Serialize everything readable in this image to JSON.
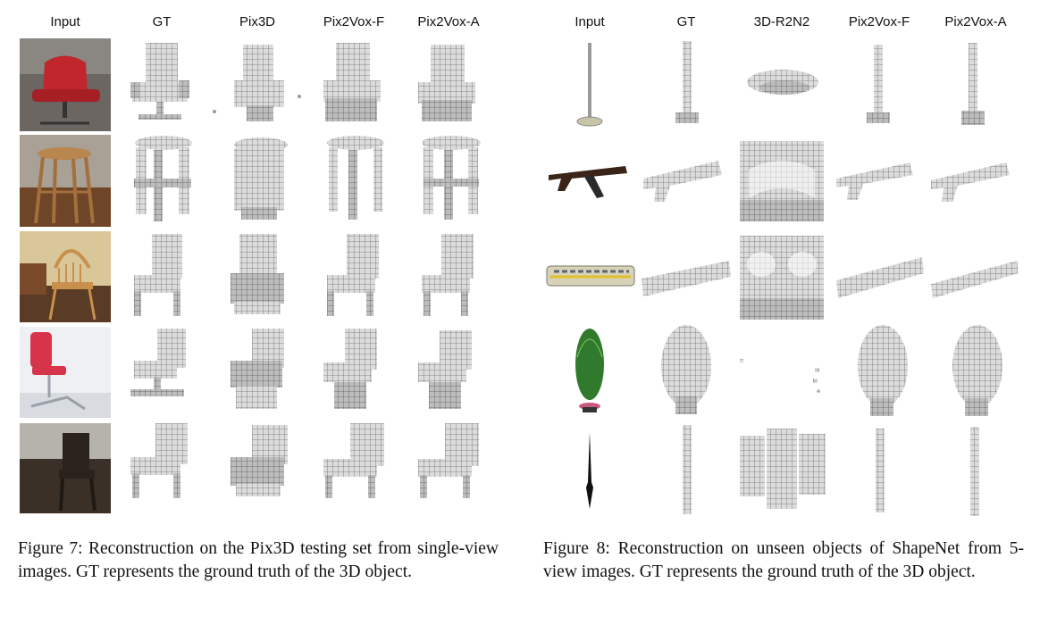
{
  "figure7": {
    "headers": [
      "Input",
      "GT",
      "Pix3D",
      "Pix2Vox-F",
      "Pix2Vox-A"
    ],
    "caption": "Figure 7: Reconstruction on the Pix3D testing set from single-view images. GT represents the ground truth of the 3D object.",
    "rows": [
      {
        "input": "red-office-chair-photo",
        "shapes": [
          "office-chair",
          "office-chair-noisy",
          "office-chair",
          "office-chair"
        ]
      },
      {
        "input": "wooden-stool-photo",
        "shapes": [
          "stool",
          "stool-noisy",
          "stool",
          "stool"
        ]
      },
      {
        "input": "wooden-windsor-chair-photo",
        "shapes": [
          "chair",
          "chair-noisy",
          "chair",
          "chair"
        ]
      },
      {
        "input": "red-swivel-chair-photo",
        "shapes": [
          "swivel-chair",
          "swivel-chair-noisy",
          "swivel-chair",
          "swivel-chair"
        ]
      },
      {
        "input": "dining-chair-photo",
        "shapes": [
          "dining-chair",
          "dining-chair-noisy",
          "dining-chair",
          "dining-chair"
        ]
      }
    ]
  },
  "figure8": {
    "headers": [
      "Input",
      "GT",
      "3D-R2N2",
      "Pix2Vox-F",
      "Pix2Vox-A"
    ],
    "caption": "Figure 8: Reconstruction on unseen objects of ShapeNet from 5-view images. GT represents the ground truth of the 3D object.",
    "rows": [
      {
        "input": "floor-lamp-render",
        "shapes": [
          "lamp",
          "blob-flat",
          "lamp",
          "lamp"
        ]
      },
      {
        "input": "rifle-render",
        "shapes": [
          "rifle",
          "box-hollow",
          "rifle",
          "rifle"
        ]
      },
      {
        "input": "train-render",
        "shapes": [
          "train",
          "box-hollow",
          "train",
          "train"
        ]
      },
      {
        "input": "vase-render",
        "shapes": [
          "vase",
          "specks",
          "vase",
          "vase"
        ]
      },
      {
        "input": "spike-render",
        "shapes": [
          "pole",
          "triple-columns",
          "pole",
          "pole"
        ]
      }
    ]
  },
  "colors": {
    "voxel_face": "#d9d9d9",
    "voxel_edge": "#7a7a7a",
    "text": "#111111"
  }
}
